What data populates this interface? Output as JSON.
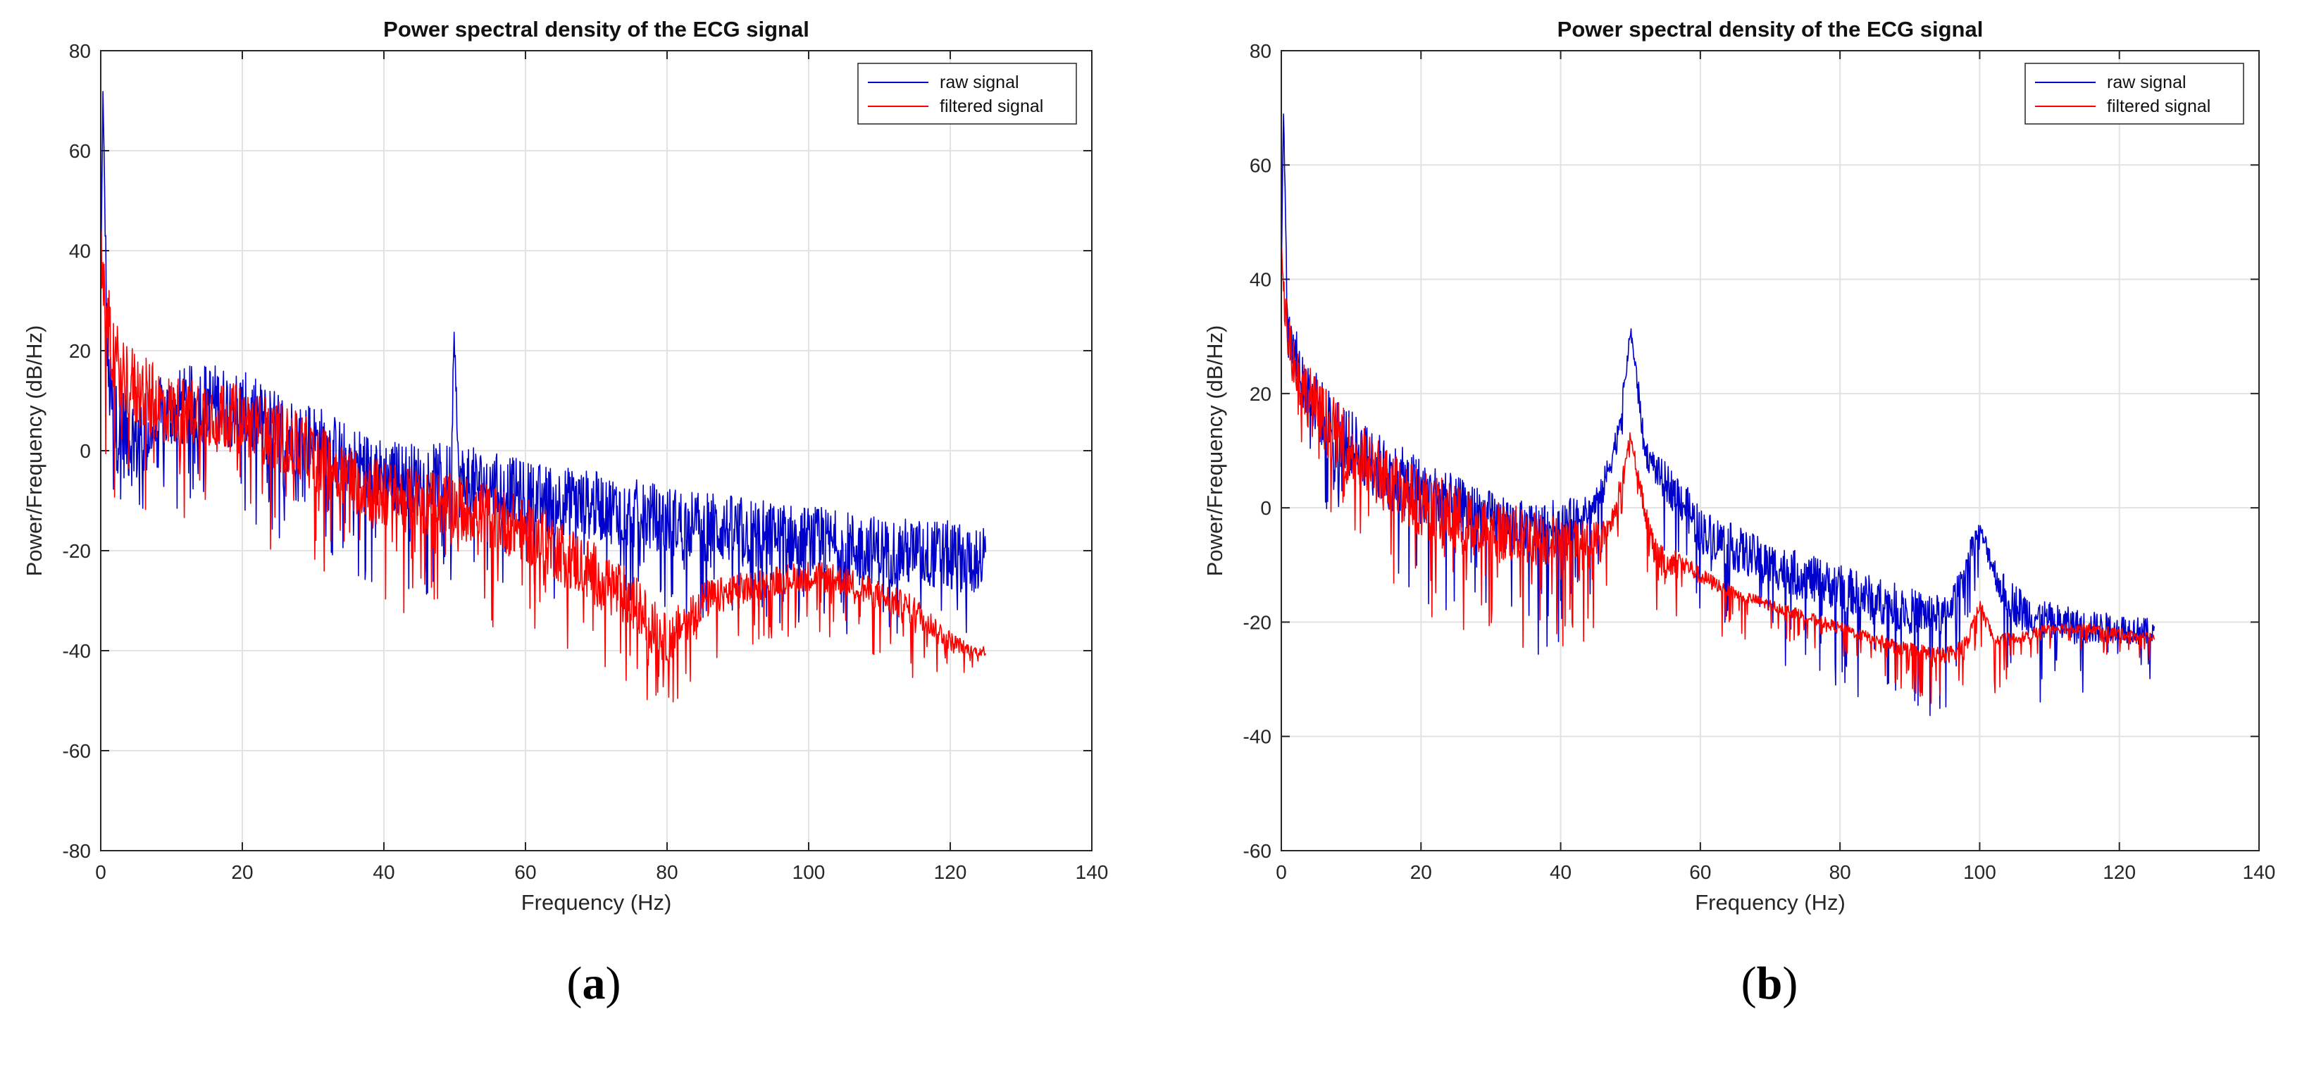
{
  "chart_data": [
    {
      "type": "line",
      "title": "Power spectral density of the ECG signal",
      "xlabel": "Frequency (Hz)",
      "ylabel": "Power/Frequency (dB/Hz)",
      "xlim": [
        0,
        140
      ],
      "ylim": [
        -80,
        80
      ],
      "xticks": [
        "0",
        "20",
        "40",
        "60",
        "80",
        "100",
        "120",
        "140"
      ],
      "yticks": [
        "-80",
        "-60",
        "-40",
        "-20",
        "0",
        "20",
        "40",
        "60",
        "80"
      ],
      "grid": true,
      "legend": "top-right",
      "caption_open": "(",
      "caption_letter": "a",
      "caption_close": ")",
      "series": [
        {
          "name": "raw signal",
          "color": "#0000cc",
          "x": [
            0,
            0.3,
            1,
            2,
            5,
            10,
            15,
            20,
            25,
            30,
            35,
            40,
            45,
            49.5,
            50,
            50.5,
            55,
            60,
            70,
            80,
            90,
            100,
            110,
            120,
            125
          ],
          "y": [
            30,
            72,
            15,
            5,
            2,
            8,
            10,
            8,
            4,
            2,
            -2,
            -5,
            -6,
            -6,
            26,
            -6,
            -7,
            -9,
            -11,
            -14,
            -16,
            -18,
            -20,
            -21,
            -22
          ],
          "spread": [
            8,
            4,
            15,
            18,
            20,
            16,
            16,
            16,
            16,
            16,
            15,
            15,
            15,
            15,
            6,
            15,
            14,
            14,
            14,
            14,
            14,
            14,
            14,
            14,
            14
          ],
          "dip": [
            25,
            10,
            25,
            25,
            25,
            20,
            20,
            22,
            22,
            22,
            24,
            24,
            24,
            24,
            10,
            24,
            22,
            20,
            20,
            20,
            18,
            18,
            18,
            18,
            18
          ]
        },
        {
          "name": "filtered signal",
          "color": "#ff0000",
          "x": [
            0,
            0.5,
            2,
            5,
            10,
            15,
            20,
            25,
            30,
            35,
            40,
            45,
            50,
            55,
            60,
            65,
            70,
            75,
            80,
            85,
            90,
            95,
            100,
            105,
            110,
            115,
            120,
            123,
            125
          ],
          "y": [
            44,
            30,
            18,
            12,
            8,
            8,
            6,
            3,
            -1,
            -5,
            -9,
            -10,
            -11,
            -13,
            -16,
            -20,
            -25,
            -30,
            -38,
            -30,
            -28,
            -26,
            -25,
            -26,
            -29,
            -32,
            -38,
            -40,
            -40
          ],
          "spread": [
            6,
            14,
            16,
            16,
            14,
            14,
            14,
            14,
            14,
            14,
            14,
            13,
            13,
            13,
            13,
            13,
            13,
            12,
            10,
            8,
            7,
            6,
            6,
            6,
            6,
            6,
            4,
            2,
            2
          ],
          "dip": [
            10,
            30,
            28,
            26,
            22,
            22,
            24,
            24,
            24,
            24,
            24,
            22,
            22,
            22,
            22,
            20,
            18,
            18,
            18,
            14,
            12,
            12,
            12,
            12,
            14,
            14,
            10,
            4,
            4
          ]
        }
      ]
    },
    {
      "type": "line",
      "title": "Power spectral density of the ECG signal",
      "xlabel": "Frequency (Hz)",
      "ylabel": "Power/Frequency (dB/Hz)",
      "xlim": [
        0,
        140
      ],
      "ylim": [
        -60,
        80
      ],
      "xticks": [
        "0",
        "20",
        "40",
        "60",
        "80",
        "100",
        "120",
        "140"
      ],
      "yticks": [
        "-60",
        "-40",
        "-20",
        "0",
        "20",
        "40",
        "60",
        "80"
      ],
      "grid": true,
      "legend": "top-right",
      "caption_open": "(",
      "caption_letter": "b",
      "caption_close": ")",
      "series": [
        {
          "name": "raw signal",
          "color": "#0000cc",
          "x": [
            0,
            0.3,
            1,
            3,
            6,
            10,
            15,
            20,
            25,
            30,
            35,
            40,
            44,
            46,
            48,
            49,
            50,
            51,
            52,
            54,
            57,
            60,
            65,
            70,
            75,
            80,
            85,
            90,
            95,
            97,
            99,
            100,
            101,
            103,
            106,
            110,
            115,
            120,
            125
          ],
          "y": [
            40,
            70,
            30,
            22,
            16,
            11,
            6,
            3,
            0,
            -2,
            -4,
            -3,
            -1,
            3,
            12,
            20,
            31,
            22,
            10,
            6,
            2,
            -4,
            -7,
            -10,
            -12,
            -14,
            -16,
            -18,
            -19,
            -14,
            -6,
            -4,
            -7,
            -14,
            -18,
            -20,
            -21,
            -21,
            -22
          ],
          "spread": [
            4,
            2,
            10,
            12,
            12,
            12,
            12,
            12,
            11,
            10,
            10,
            9,
            6,
            6,
            5,
            4,
            2,
            4,
            5,
            6,
            8,
            8,
            8,
            8,
            8,
            8,
            8,
            8,
            7,
            5,
            4,
            3,
            4,
            6,
            8,
            7,
            6,
            5,
            5
          ],
          "dip": [
            8,
            4,
            12,
            14,
            16,
            18,
            20,
            20,
            20,
            20,
            22,
            22,
            18,
            12,
            8,
            6,
            4,
            6,
            10,
            12,
            14,
            14,
            16,
            18,
            18,
            20,
            20,
            18,
            18,
            14,
            10,
            8,
            10,
            14,
            16,
            14,
            12,
            10,
            8
          ]
        },
        {
          "name": "filtered signal",
          "color": "#ff0000",
          "x": [
            0,
            0.5,
            2,
            5,
            10,
            15,
            20,
            25,
            30,
            35,
            40,
            44,
            47,
            49,
            50,
            51,
            53,
            55,
            57,
            60,
            65,
            70,
            75,
            80,
            85,
            90,
            95,
            98,
            100,
            102,
            105,
            110,
            115,
            120,
            125
          ],
          "y": [
            46,
            35,
            24,
            17,
            10,
            5,
            1,
            -2,
            -4,
            -5,
            -6,
            -6,
            -4,
            6,
            13,
            6,
            -6,
            -10,
            -9,
            -12,
            -15,
            -17,
            -19,
            -21,
            -23,
            -25,
            -26,
            -24,
            -17,
            -23,
            -23,
            -21,
            -21,
            -22,
            -23
          ],
          "spread": [
            4,
            6,
            10,
            12,
            12,
            12,
            12,
            12,
            11,
            10,
            9,
            7,
            5,
            3,
            2,
            3,
            5,
            5,
            4,
            3,
            2,
            2,
            2,
            2,
            2,
            3,
            3,
            3,
            2,
            3,
            2,
            2,
            2,
            2,
            2
          ],
          "dip": [
            4,
            8,
            12,
            14,
            16,
            18,
            20,
            20,
            20,
            20,
            20,
            18,
            12,
            6,
            4,
            6,
            14,
            16,
            12,
            10,
            8,
            6,
            5,
            5,
            5,
            8,
            10,
            12,
            6,
            12,
            6,
            4,
            4,
            4,
            4
          ]
        }
      ]
    }
  ]
}
